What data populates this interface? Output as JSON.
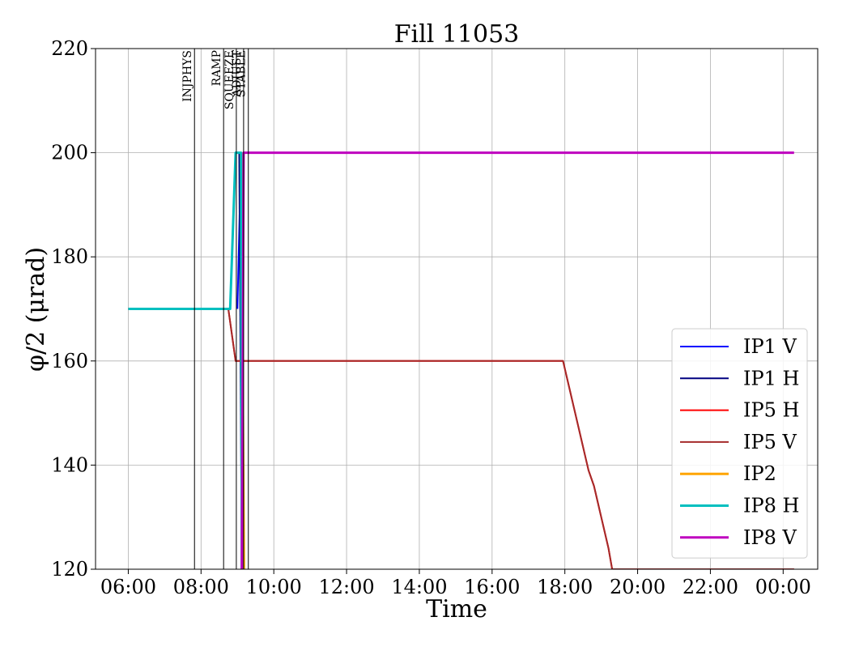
{
  "chart_data": {
    "type": "line",
    "title": "Fill 11053",
    "xlabel": "Time",
    "ylabel": "φ/2 (μrad)",
    "ylim": [
      120,
      220
    ],
    "xlim_hours": [
      5.1,
      24.95
    ],
    "grid": true,
    "legend_position": "bottom-right",
    "y_ticks": [
      120,
      140,
      160,
      180,
      200,
      220
    ],
    "x_ticks": [
      {
        "hour": 6,
        "label": "06:00"
      },
      {
        "hour": 8,
        "label": "08:00"
      },
      {
        "hour": 10,
        "label": "10:00"
      },
      {
        "hour": 12,
        "label": "12:00"
      },
      {
        "hour": 14,
        "label": "14:00"
      },
      {
        "hour": 16,
        "label": "16:00"
      },
      {
        "hour": 18,
        "label": "18:00"
      },
      {
        "hour": 20,
        "label": "20:00"
      },
      {
        "hour": 22,
        "label": "22:00"
      },
      {
        "hour": 24,
        "label": "00:00"
      }
    ],
    "phases": [
      {
        "label": "INJPHYS",
        "hour": 7.82
      },
      {
        "label": "RAMP",
        "hour": 8.62
      },
      {
        "label": "SQUEEZE",
        "hour": 8.97
      },
      {
        "label": "ADJUST",
        "hour": 9.17
      },
      {
        "label": "STABLE",
        "hour": 9.3
      }
    ],
    "series": [
      {
        "name": "IP1 V",
        "color": "#0000ff",
        "width": 2,
        "points": [
          [
            9.0,
            170
          ],
          [
            9.1,
            200
          ],
          [
            9.15,
            120
          ]
        ]
      },
      {
        "name": "IP1 H",
        "color": "#000080",
        "width": 2,
        "points": [
          [
            9.05,
            200
          ],
          [
            9.12,
            120
          ]
        ]
      },
      {
        "name": "IP5 H",
        "color": "#ff0000",
        "width": 2,
        "points": [
          [
            6.0,
            170
          ],
          [
            8.75,
            170
          ],
          [
            8.95,
            160
          ],
          [
            17.95,
            160
          ],
          [
            18.05,
            157
          ],
          [
            18.15,
            154
          ],
          [
            18.25,
            151
          ],
          [
            18.35,
            148
          ],
          [
            18.45,
            145
          ],
          [
            18.55,
            142
          ],
          [
            18.65,
            139
          ],
          [
            18.8,
            136
          ],
          [
            18.9,
            133
          ],
          [
            19.0,
            130
          ],
          [
            19.1,
            127
          ],
          [
            19.2,
            124
          ],
          [
            19.3,
            120
          ],
          [
            24.3,
            120
          ]
        ]
      },
      {
        "name": "IP5 V",
        "color": "#a52a2a",
        "width": 2,
        "points": [
          [
            6.0,
            170
          ],
          [
            8.75,
            170
          ],
          [
            8.95,
            160
          ],
          [
            17.95,
            160
          ],
          [
            18.05,
            157
          ],
          [
            18.15,
            154
          ],
          [
            18.25,
            151
          ],
          [
            18.35,
            148
          ],
          [
            18.45,
            145
          ],
          [
            18.55,
            142
          ],
          [
            18.65,
            139
          ],
          [
            18.8,
            136
          ],
          [
            18.9,
            133
          ],
          [
            19.0,
            130
          ],
          [
            19.1,
            127
          ],
          [
            19.2,
            124
          ],
          [
            19.3,
            120
          ],
          [
            24.3,
            120
          ]
        ]
      },
      {
        "name": "IP2",
        "color": "#ffa500",
        "width": 3,
        "points": [
          [
            9.1,
            200
          ],
          [
            9.18,
            120
          ]
        ]
      },
      {
        "name": "IP8 H",
        "color": "#00bfbf",
        "width": 3,
        "points": [
          [
            6.0,
            170
          ],
          [
            8.8,
            170
          ],
          [
            8.95,
            200
          ],
          [
            9.1,
            200
          ],
          [
            9.12,
            120
          ]
        ]
      },
      {
        "name": "IP8 V",
        "color": "#bf00bf",
        "width": 3,
        "points": [
          [
            9.12,
            120
          ],
          [
            9.17,
            200
          ],
          [
            24.3,
            200
          ]
        ]
      }
    ]
  }
}
